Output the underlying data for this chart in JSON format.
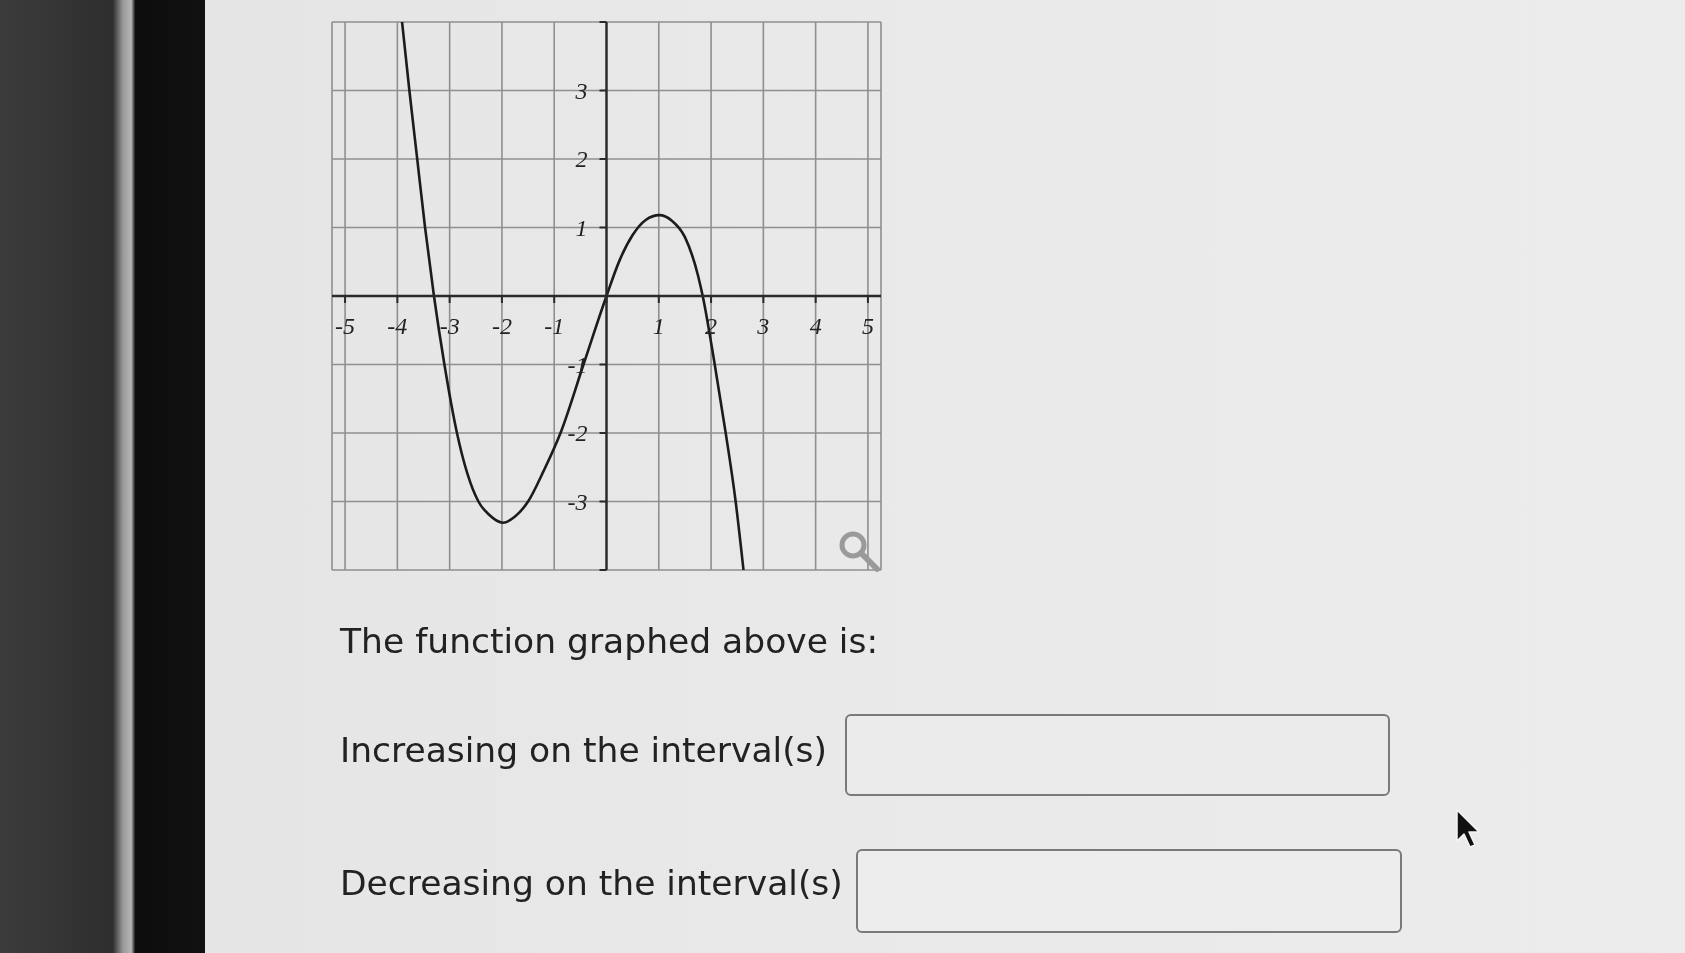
{
  "chart_data": {
    "type": "line",
    "x": [
      -3.91,
      -3.77,
      -3.62,
      -3.47,
      -3.3,
      -3.1,
      -2.86,
      -2.45,
      -2.25,
      -1.98,
      -1.75,
      -1.5,
      -1.2,
      -0.88,
      -0.44,
      0,
      0.25,
      0.5,
      0.75,
      1.01,
      1.25,
      1.5,
      1.75,
      1.84,
      2.07,
      2.28,
      2.47,
      2.62
    ],
    "values": [
      4,
      3,
      2,
      1,
      0,
      -1,
      -2,
      -3,
      -3.19,
      -3.31,
      -3.22,
      -3,
      -2.55,
      -2,
      -1,
      0,
      0.52,
      0.89,
      1.11,
      1.18,
      1.1,
      0.86,
      0.3,
      0,
      -1,
      -2,
      -3,
      -4
    ],
    "color": "#1c1c1c",
    "marker": "none",
    "line_style": "solid",
    "grid": true,
    "xlim": [
      -5.25,
      5.25
    ],
    "ylim": [
      -4,
      4
    ],
    "xticks": [
      -5,
      -4,
      -3,
      -2,
      -1,
      {
        "value": 0,
        "label": null
      },
      1,
      2,
      3,
      4,
      5
    ],
    "yticks": [
      {
        "value": -4,
        "label": null
      },
      -3,
      -2,
      -1,
      {
        "value": 0,
        "label": null
      },
      1,
      2,
      3,
      {
        "value": 4,
        "label": null
      }
    ],
    "annotations": [
      "The function graphed above is:",
      "Increasing on the interval(s)",
      "Decreasing on the interval(s)"
    ]
  }
}
